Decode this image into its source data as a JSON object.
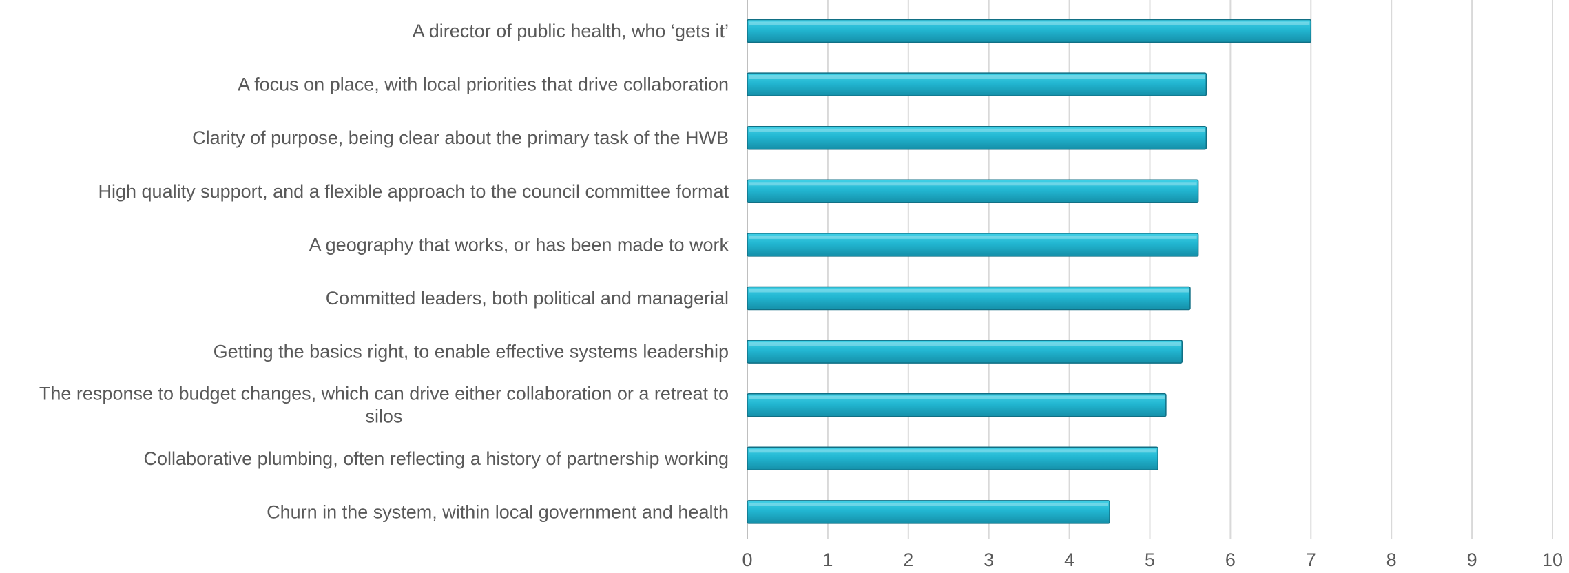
{
  "chart_data": {
    "type": "bar",
    "orientation": "horizontal",
    "title": "",
    "xlabel": "",
    "ylabel": "",
    "categories": [
      "A director of public health, who ‘gets it’",
      "A focus on place, with local priorities that drive collaboration",
      "Clarity of purpose, being clear about the primary task of the HWB",
      "High quality support, and a flexible approach to the council committee format",
      "A geography that works, or has been made to work",
      "Committed leaders, both political and managerial",
      "Getting the basics right, to enable effective systems leadership",
      "The response to budget changes, which can drive either collaboration or a retreat to silos",
      "Collaborative plumbing, often reflecting a history of partnership working",
      "Churn in the system, within local government and health"
    ],
    "category_lines": [
      [
        "A director of public health, who ‘gets it’"
      ],
      [
        "A focus on place, with local priorities that drive collaboration"
      ],
      [
        "Clarity of purpose, being clear about the primary task of the HWB"
      ],
      [
        "High quality support, and a flexible approach to the council committee format"
      ],
      [
        "A geography that works, or has been made to work"
      ],
      [
        "Committed leaders, both political and managerial"
      ],
      [
        "Getting the basics right, to enable effective systems leadership"
      ],
      [
        "The response to budget changes, which can drive either collaboration or a retreat to",
        "silos"
      ],
      [
        "Collaborative plumbing, often reflecting a history of partnership working"
      ],
      [
        "Churn in the system, within local government and health"
      ]
    ],
    "values": [
      7.0,
      5.7,
      5.7,
      5.6,
      5.6,
      5.5,
      5.4,
      5.2,
      5.1,
      4.5
    ],
    "xlim": [
      0,
      10
    ],
    "x_ticks": [
      0,
      1,
      2,
      3,
      4,
      5,
      6,
      7,
      8,
      9,
      10
    ],
    "grid": true,
    "legend": "none",
    "colors": {
      "bar_top": "#3fd0e6",
      "bar_mid": "#22b6d1",
      "bar_bottom": "#158fa8",
      "bar_edge": "#116f84",
      "grid": "#d9d9d9",
      "axis": "#bfbfbf",
      "text": "#595959"
    }
  }
}
